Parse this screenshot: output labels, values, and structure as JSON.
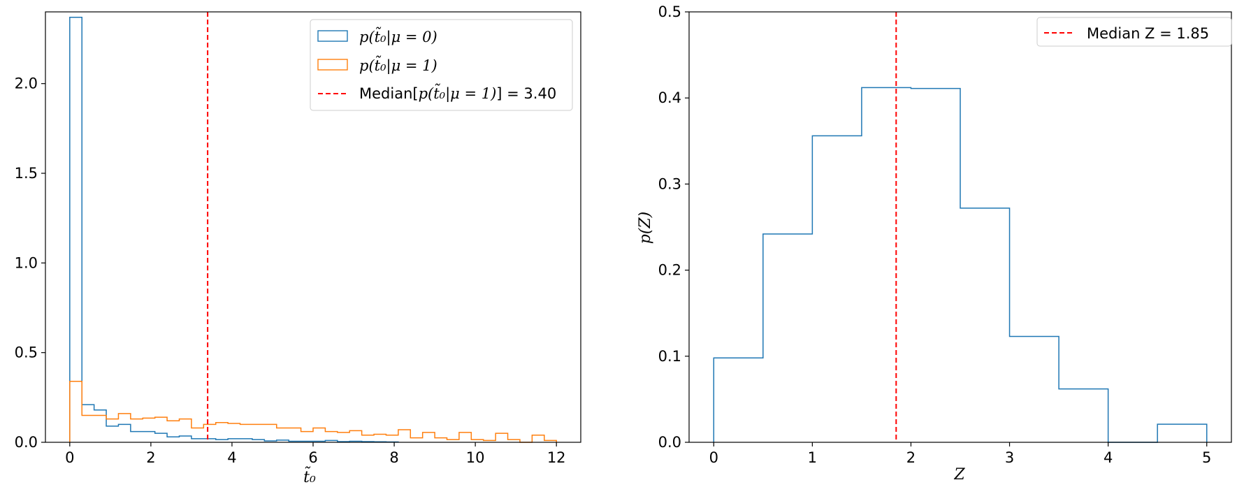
{
  "chart_data": [
    {
      "type": "histogram",
      "xlabel": "t̃₀",
      "ylabel": "",
      "xlim": [
        -0.6,
        12.6
      ],
      "ylim": [
        0,
        2.4
      ],
      "xticks": [
        0,
        2,
        4,
        6,
        8,
        10,
        12
      ],
      "yticks": [
        0.0,
        0.5,
        1.0,
        1.5,
        2.0
      ],
      "legend_position": "top-right",
      "series": [
        {
          "name": "p(t̃₀|μ = 0)",
          "color": "#1f77b4",
          "bin_edges": [
            0.0,
            0.3,
            0.6,
            0.9,
            1.2,
            1.5,
            1.8,
            2.1,
            2.4,
            2.7,
            3.0,
            3.3,
            3.6,
            3.9,
            4.2,
            4.5,
            4.8,
            5.1,
            5.4,
            5.7,
            6.0,
            6.3,
            6.6,
            6.9,
            7.2,
            7.5,
            7.8,
            8.1
          ],
          "values": [
            2.37,
            0.21,
            0.18,
            0.09,
            0.1,
            0.06,
            0.06,
            0.05,
            0.03,
            0.035,
            0.02,
            0.02,
            0.015,
            0.02,
            0.02,
            0.015,
            0.008,
            0.012,
            0.006,
            0.006,
            0.006,
            0.01,
            0.004,
            0.006,
            0.004,
            0.003,
            0.002
          ]
        },
        {
          "name": "p(t̃₀|μ = 1)",
          "color": "#ff7f0e",
          "bin_edges": [
            0.0,
            0.3,
            0.6,
            0.9,
            1.2,
            1.5,
            1.8,
            2.1,
            2.4,
            2.7,
            3.0,
            3.3,
            3.6,
            3.9,
            4.2,
            4.5,
            4.8,
            5.1,
            5.4,
            5.7,
            6.0,
            6.3,
            6.6,
            6.9,
            7.2,
            7.5,
            7.8,
            8.1,
            8.4,
            8.7,
            9.0,
            9.3,
            9.6,
            9.9,
            10.2,
            10.5,
            10.8,
            11.1,
            11.4,
            11.7,
            12.0
          ],
          "values": [
            0.34,
            0.15,
            0.15,
            0.13,
            0.16,
            0.13,
            0.135,
            0.14,
            0.12,
            0.13,
            0.08,
            0.1,
            0.11,
            0.105,
            0.1,
            0.1,
            0.1,
            0.08,
            0.08,
            0.06,
            0.08,
            0.06,
            0.055,
            0.065,
            0.04,
            0.045,
            0.04,
            0.07,
            0.025,
            0.055,
            0.025,
            0.015,
            0.055,
            0.015,
            0.01,
            0.05,
            0.015,
            0.0,
            0.04,
            0.01
          ]
        }
      ],
      "vline": {
        "x": 3.4,
        "color": "#ff0000",
        "label_prefix": "Median[",
        "label_math": "p(t̃₀|μ = 1)",
        "label_suffix": "] = 3.40"
      }
    },
    {
      "type": "histogram",
      "xlabel": "Z",
      "ylabel": "p(Z)",
      "xlim": [
        -0.25,
        5.25
      ],
      "ylim": [
        0,
        0.5
      ],
      "xticks": [
        0,
        1,
        2,
        3,
        4,
        5
      ],
      "yticks": [
        0.0,
        0.1,
        0.2,
        0.3,
        0.4,
        0.5
      ],
      "legend_position": "top-right",
      "series": [
        {
          "name": "",
          "color": "#1f77b4",
          "bin_edges": [
            0.0,
            0.5,
            1.0,
            1.5,
            2.0,
            2.5,
            3.0,
            3.5,
            4.0,
            4.5,
            5.0
          ],
          "values": [
            0.098,
            0.242,
            0.356,
            0.412,
            0.411,
            0.272,
            0.123,
            0.062,
            0.0,
            0.021
          ]
        }
      ],
      "vline": {
        "x": 1.85,
        "color": "#ff0000",
        "label": "Median Z = 1.85"
      }
    }
  ]
}
